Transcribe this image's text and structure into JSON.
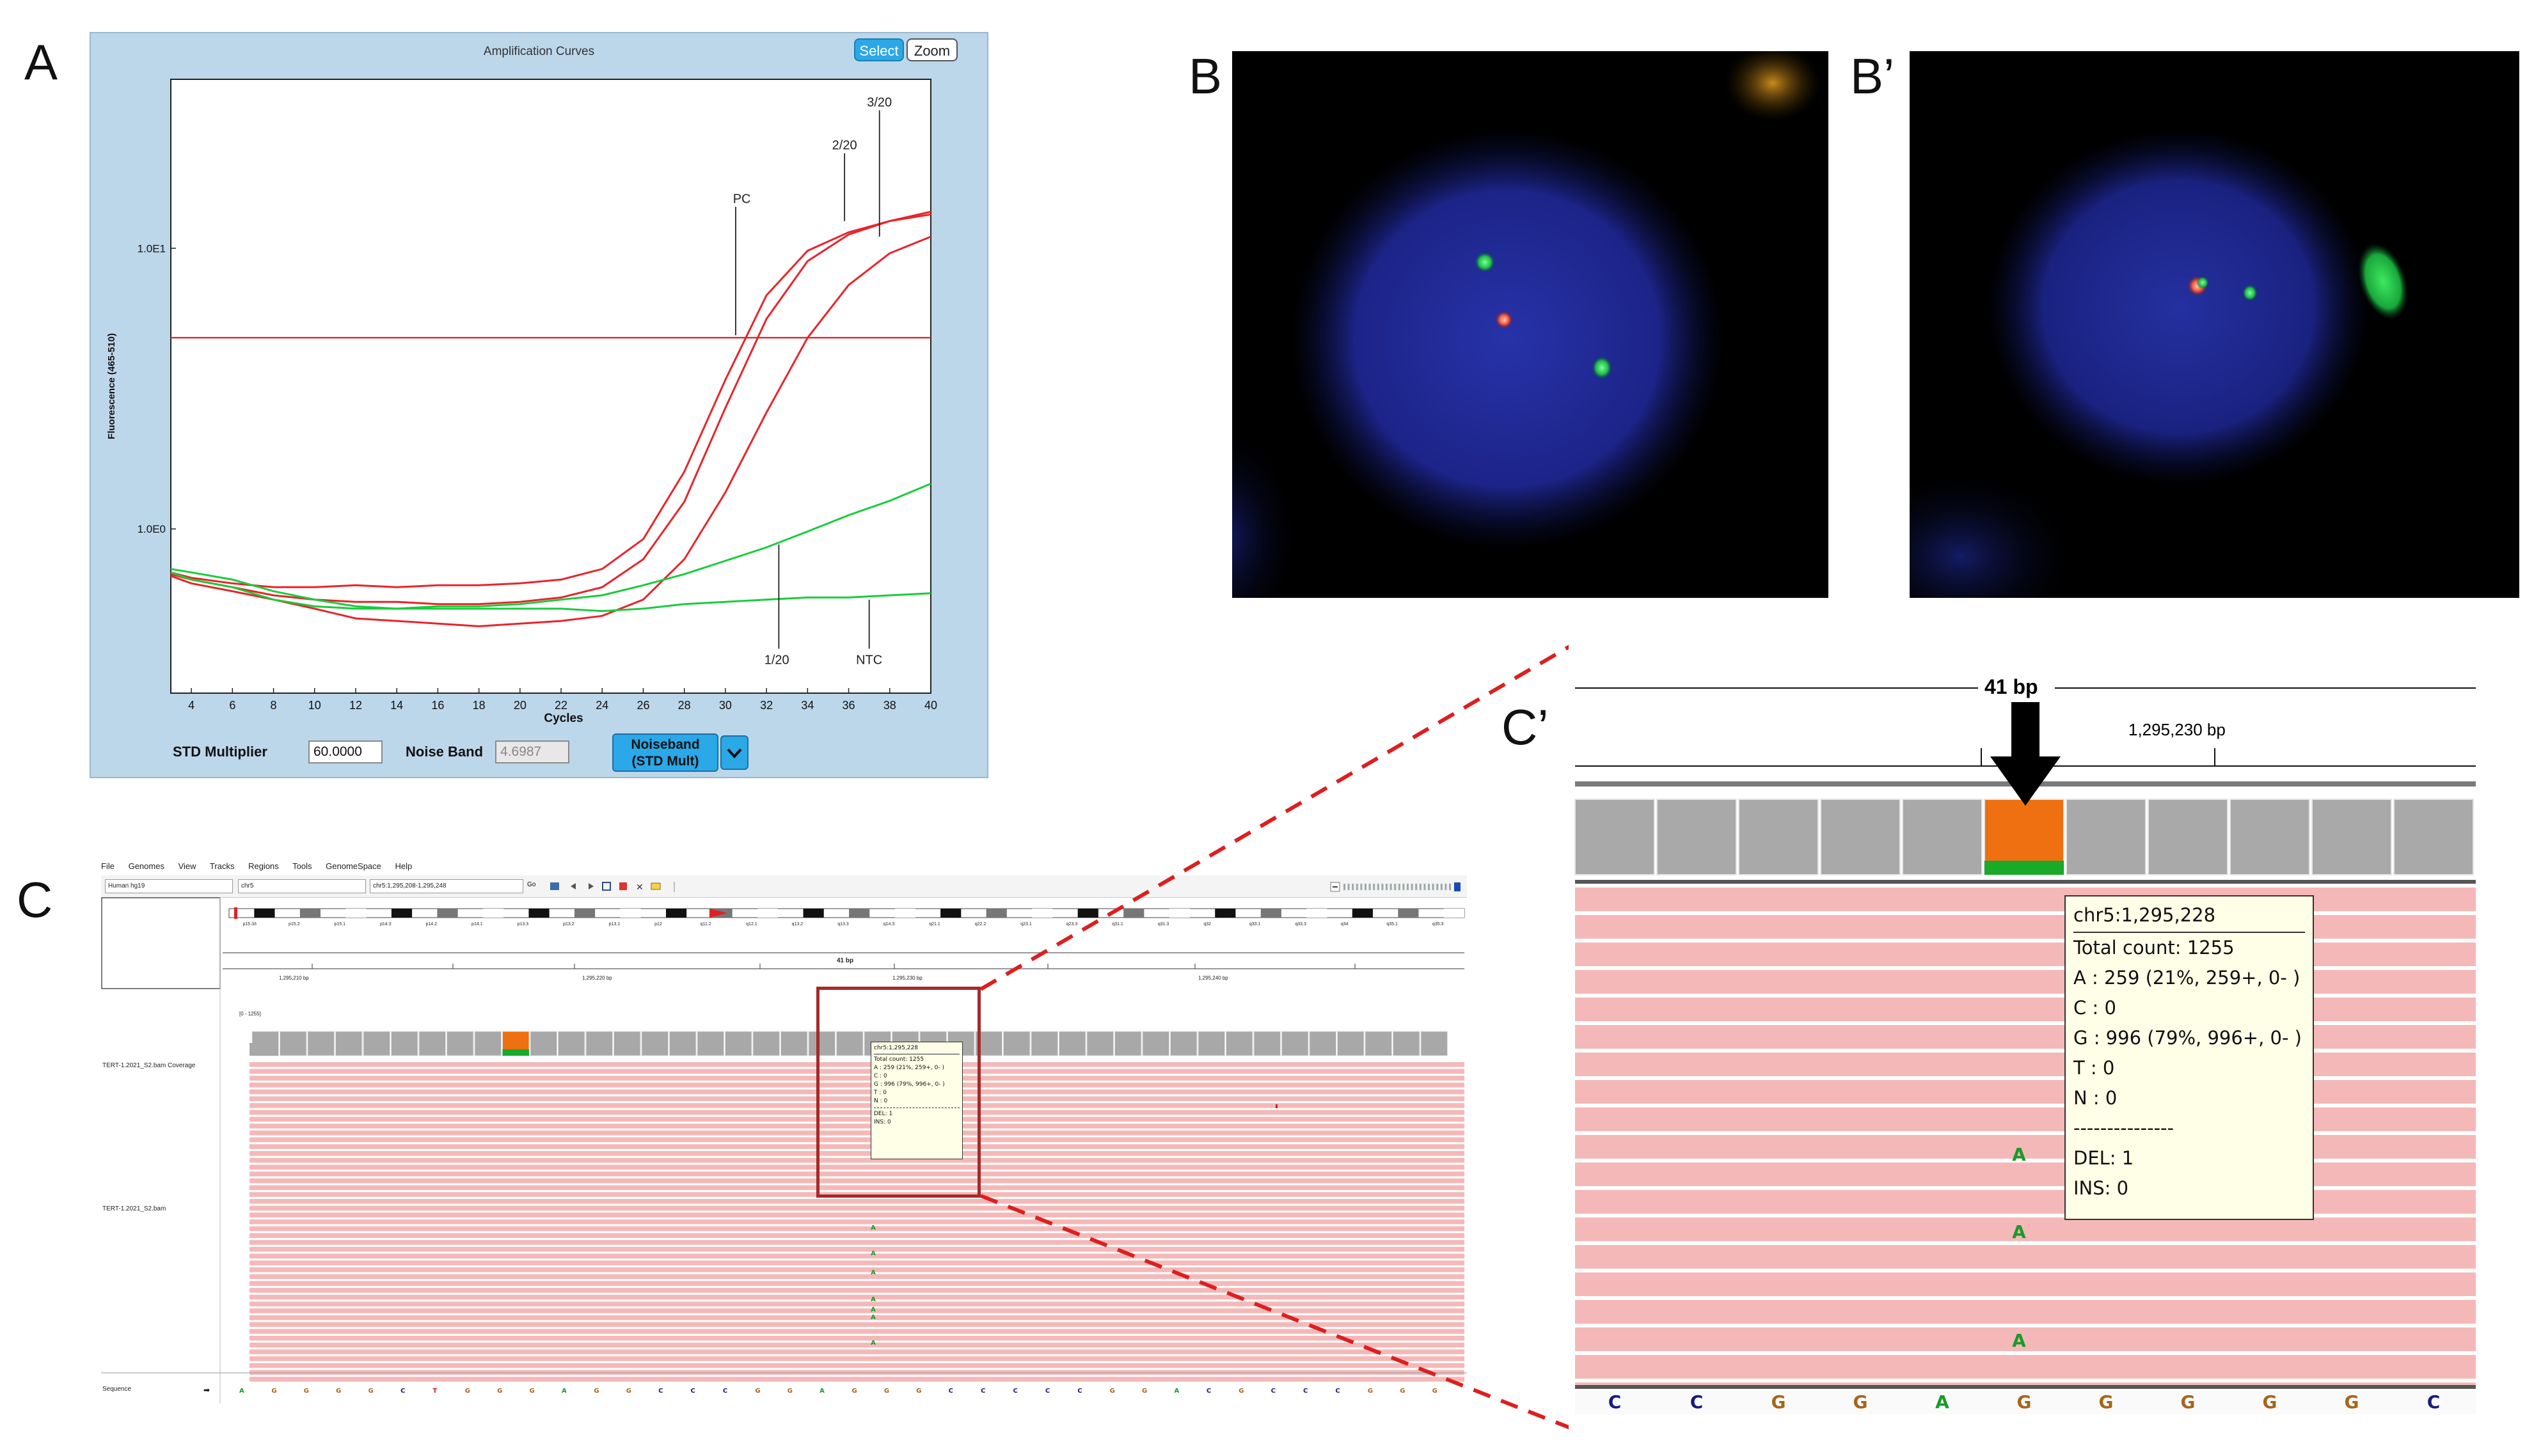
{
  "panel_labels": {
    "a": "A",
    "b": "B",
    "b_prime": "B’",
    "c": "C",
    "c_prime": "C’"
  },
  "amplification": {
    "title": "Amplification Curves",
    "buttons": {
      "select": "Select",
      "zoom": "Zoom"
    },
    "std_multiplier_label": "STD Multiplier",
    "std_multiplier_value": "60.0000",
    "noise_band_label": "Noise Band",
    "noise_band_value": "4.6987",
    "noiseband_button_line1": "Noiseband",
    "noiseband_button_line2": "(STD Mult)"
  },
  "chart_data": {
    "type": "line",
    "title": "Amplification Curves",
    "xlabel": "Cycles",
    "ylabel": "Fluorescence (465-510)",
    "xlim": [
      3,
      40
    ],
    "y_scale": "log",
    "x_ticks": [
      4,
      6,
      8,
      10,
      12,
      14,
      16,
      18,
      20,
      22,
      24,
      26,
      28,
      30,
      32,
      34,
      36,
      38,
      40
    ],
    "y_ticks": [
      "1.0E0",
      "1.0E1"
    ],
    "threshold": 4.8,
    "grid": false,
    "colors": {
      "positive": "#e8242a",
      "negative": "#19cc3c",
      "threshold": "#d43030"
    },
    "series": [
      {
        "name": "PC",
        "color": "#e8242a",
        "x": [
          3,
          4,
          6,
          8,
          10,
          12,
          14,
          16,
          18,
          20,
          22,
          24,
          26,
          28,
          30,
          32,
          34,
          36,
          38,
          40
        ],
        "y": [
          0.7,
          0.67,
          0.64,
          0.62,
          0.62,
          0.63,
          0.62,
          0.63,
          0.63,
          0.64,
          0.66,
          0.72,
          0.92,
          1.6,
          3.4,
          6.8,
          9.8,
          11.4,
          12.5,
          13.2
        ]
      },
      {
        "name": "2/20",
        "color": "#e8242a",
        "x": [
          3,
          4,
          6,
          8,
          10,
          12,
          14,
          16,
          18,
          20,
          22,
          24,
          26,
          28,
          30,
          32,
          34,
          36,
          38,
          40
        ],
        "y": [
          0.69,
          0.66,
          0.62,
          0.58,
          0.56,
          0.55,
          0.55,
          0.54,
          0.54,
          0.55,
          0.57,
          0.62,
          0.78,
          1.25,
          2.7,
          5.6,
          9.0,
          11.2,
          12.5,
          13.5
        ]
      },
      {
        "name": "3/20",
        "color": "#e8242a",
        "x": [
          3,
          4,
          6,
          8,
          10,
          12,
          14,
          16,
          18,
          20,
          22,
          24,
          26,
          28,
          30,
          32,
          34,
          36,
          38,
          40
        ],
        "y": [
          0.68,
          0.64,
          0.6,
          0.56,
          0.52,
          0.48,
          0.47,
          0.46,
          0.45,
          0.46,
          0.47,
          0.49,
          0.56,
          0.78,
          1.35,
          2.6,
          4.8,
          7.4,
          9.6,
          11.0
        ]
      },
      {
        "name": "1/20",
        "color": "#19cc3c",
        "x": [
          3,
          4,
          6,
          8,
          10,
          12,
          14,
          16,
          18,
          20,
          22,
          24,
          26,
          28,
          30,
          32,
          34,
          36,
          38,
          40
        ],
        "y": [
          0.7,
          0.66,
          0.62,
          0.56,
          0.53,
          0.52,
          0.52,
          0.53,
          0.53,
          0.54,
          0.56,
          0.58,
          0.63,
          0.69,
          0.77,
          0.86,
          0.98,
          1.12,
          1.26,
          1.45
        ]
      },
      {
        "name": "NTC",
        "color": "#19cc3c",
        "x": [
          3,
          4,
          6,
          8,
          10,
          12,
          14,
          16,
          18,
          20,
          22,
          24,
          26,
          28,
          30,
          32,
          34,
          36,
          38,
          40
        ],
        "y": [
          0.72,
          0.7,
          0.66,
          0.6,
          0.56,
          0.53,
          0.52,
          0.52,
          0.52,
          0.52,
          0.52,
          0.51,
          0.52,
          0.54,
          0.55,
          0.56,
          0.57,
          0.57,
          0.58,
          0.59
        ]
      }
    ]
  },
  "igv": {
    "menu": [
      "File",
      "Genomes",
      "View",
      "Tracks",
      "Regions",
      "Tools",
      "GenomeSpace",
      "Help"
    ],
    "genome": "Human hg19",
    "chromosome": "chr5",
    "locus": "chr5:1,295,208-1,295,248",
    "go_label": "Go",
    "ruler_span": "41 bp",
    "ruler_ticks": [
      "1,295,210 bp",
      "1,295,220 bp",
      "1,295,230 bp",
      "1,295,240 bp"
    ],
    "coverage_track": "TERT-1.2021_S2.bam Coverage",
    "coverage_range": "[0 - 1255]",
    "reads_track": "TERT-1.2021_S2.bam",
    "sequence_label": "Sequence",
    "cytobands": [
      "p15.33",
      "p15.2",
      "p15.1",
      "p14.3",
      "p14.2",
      "p14.1",
      "p13.3",
      "p13.2",
      "p13.1",
      "p12",
      "q11.2",
      "q12.1",
      "q13.2",
      "q13.3",
      "q14.3",
      "q21.1",
      "q22.2",
      "q23.1",
      "q23.3",
      "q31.1",
      "q31.3",
      "q32",
      "q33.1",
      "q33.3",
      "q34",
      "q35.1",
      "q35.3"
    ],
    "sequence": [
      "A",
      "G",
      "G",
      "G",
      "G",
      "C",
      "T",
      "G",
      "G",
      "G",
      "A",
      "G",
      "G",
      "C",
      "C",
      "C",
      "G",
      "G",
      "A",
      "G",
      "G",
      "G",
      "C",
      "C",
      "C",
      "C",
      "C",
      "G",
      "G",
      "A",
      "C",
      "G",
      "C",
      "C",
      "C",
      "G",
      "G",
      "G"
    ],
    "tooltip": [
      "chr5:1,295,228",
      "Total count: 1255",
      "A : 259 (21%, 259+, 0- )",
      "C : 0",
      "G : 996 (79%, 996+, 0- )",
      "T : 0",
      "N : 0",
      "DEL: 1",
      "INS: 0"
    ]
  },
  "zoom": {
    "span": "41 bp",
    "position_label": "1,295,230 bp",
    "tooltip": {
      "position": "chr5:1,295,228",
      "total": "Total count: 1255",
      "a": "A : 259 (21%, 259+, 0- )",
      "c": "C : 0",
      "g": "G : 996 (79%, 996+, 0- )",
      "t": "T : 0",
      "n": "N : 0",
      "separator": "---------------",
      "del": "DEL: 1",
      "ins": "INS: 0"
    },
    "mismatch_base": "A",
    "sequence": [
      "C",
      "C",
      "G",
      "G",
      "A",
      "G",
      "G",
      "G",
      "G",
      "G",
      "C"
    ],
    "colors": {
      "A": "#1a9a2a",
      "C": "#1a1a7a",
      "G": "#a6651a",
      "T": "#cc2222",
      "read": "#f5b8b8",
      "variant_bar": "#ee7010",
      "ref_bar": "#1aaa2a"
    }
  }
}
